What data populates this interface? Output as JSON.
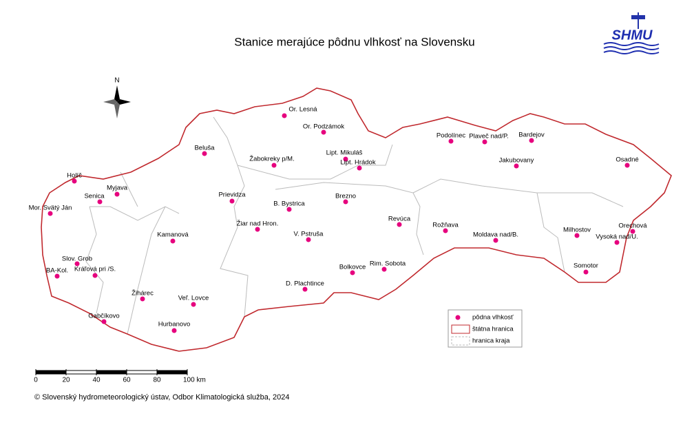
{
  "title": "Stanice merajúce pôdnu vlhkosť na Slovensku",
  "logo": "SHMU",
  "north": "N",
  "stations": [
    "Or. Lesná",
    "Or. Podzámok",
    "Lipt. Mikuláš",
    "Lipt. Hrádok",
    "Podolínec",
    "Plaveč nad/P.",
    "Bardejov",
    "Jakubovany",
    "Osadné",
    "Beluša",
    "Žabokreky p/M.",
    "Holíč",
    "Myjava",
    "Senica",
    "Mor. Svätý Ján",
    "Prievidza",
    "B. Bystrica",
    "Brezno",
    "Revúca",
    "Rožňava",
    "Milhostov",
    "Orechová",
    "Moldava nad/B.",
    "Vysoká nad/U.",
    "Žiar nad Hron.",
    "V. Pstruša",
    "Kamanová",
    "Slov. Grob",
    "Kráľová pri /S.",
    "BA-Kol.",
    "Bolkovce",
    "Rim. Sobota",
    "Somotor",
    "D. Plachtince",
    "Žihárec",
    "Veľ. Lovce",
    "Gabčíkovo",
    "Hurbanovo"
  ],
  "legend": {
    "items": [
      "pôdna vlhkosť",
      "štátna hranica",
      "hranica kraja"
    ]
  },
  "scale_bar": {
    "ticks": [
      0,
      20,
      40,
      60,
      80,
      {
        "value": 100,
        "label": "100 km"
      }
    ]
  },
  "footer": "© Slovenský hydrometeorologický ústav, Odbor Klimatologická služba, 2024"
}
